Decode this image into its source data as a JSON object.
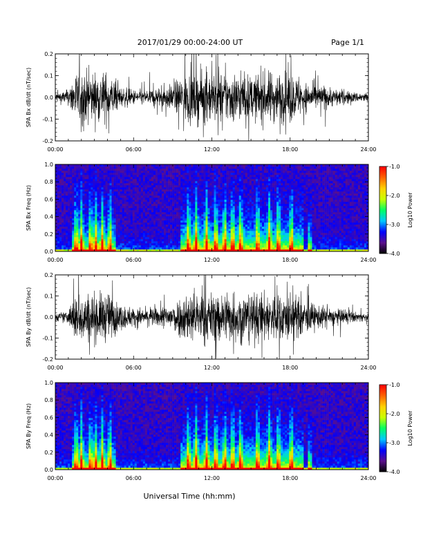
{
  "header": {
    "date_range": "2017/01/29  00:00-24:00 UT",
    "page": "Page 1/1"
  },
  "xlabel": "Universal Time (hh:mm)",
  "x_tick_labels": [
    "00:00",
    "06:00",
    "12:00",
    "18:00",
    "24:00"
  ],
  "chart_data": [
    {
      "type": "line",
      "ylabel": "SPA Bx dB/dt (nT/sec)",
      "xlim": [
        0,
        24
      ],
      "ylim": [
        -0.2,
        0.2
      ],
      "y_ticks": [
        "-0.2",
        "-0.1",
        "0.0",
        "0.1",
        "0.2"
      ],
      "series": [
        {
          "x_hours": [
            0,
            1,
            1.5,
            2,
            2.5,
            3,
            3.5,
            4,
            5,
            6,
            7,
            8,
            9,
            10,
            10.5,
            11,
            12,
            13,
            14,
            15,
            16,
            16.5,
            17,
            17.5,
            18,
            19,
            20,
            21,
            22,
            23,
            24
          ],
          "amplitude": [
            0.04,
            0.06,
            0.2,
            0.2,
            0.2,
            0.2,
            0.2,
            0.2,
            0.08,
            0.06,
            0.06,
            0.08,
            0.1,
            0.2,
            0.2,
            0.2,
            0.2,
            0.2,
            0.2,
            0.17,
            0.2,
            0.2,
            0.2,
            0.2,
            0.2,
            0.12,
            0.1,
            0.08,
            0.06,
            0.04,
            0.04
          ]
        }
      ]
    },
    {
      "type": "heatmap",
      "ylabel": "SPA Bx Freq (Hz)",
      "xlim": [
        0,
        24
      ],
      "ylim": [
        0,
        1.0
      ],
      "y_ticks": [
        "0.0",
        "0.2",
        "0.4",
        "0.6",
        "0.8",
        "1.0"
      ],
      "colorbar": {
        "label": "Log10 Power",
        "range": [
          -4.0,
          -1.0
        ],
        "ticks": [
          "-1.0",
          "-2.0",
          "-3.0",
          "-4.0"
        ],
        "colors": [
          "#000000",
          "#5a0f8c",
          "#0000ff",
          "#00c8ff",
          "#00ff64",
          "#c8ff00",
          "#ffd200",
          "#ff6400",
          "#ff0000"
        ]
      },
      "activity_hours": [
        1.6,
        2.0,
        2.7,
        3.1,
        3.6,
        4.2,
        10.2,
        10.8,
        11.6,
        12.3,
        13.0,
        13.6,
        14.2,
        15.5,
        16.4,
        17.1,
        18.1,
        19.5
      ]
    },
    {
      "type": "line",
      "ylabel": "SPA By dB/dt (nT/sec)",
      "xlim": [
        0,
        24
      ],
      "ylim": [
        -0.2,
        0.2
      ],
      "y_ticks": [
        "-0.2",
        "-0.1",
        "0.0",
        "0.1",
        "0.2"
      ],
      "series": [
        {
          "x_hours": [
            0,
            1,
            1.5,
            2,
            2.5,
            3,
            3.5,
            4,
            5,
            6,
            7,
            8,
            9,
            10,
            10.5,
            11,
            12,
            13,
            14,
            15,
            16,
            16.5,
            17,
            17.5,
            18,
            19,
            20,
            21,
            22,
            23,
            24
          ],
          "amplitude": [
            0.03,
            0.05,
            0.2,
            0.2,
            0.2,
            0.2,
            0.2,
            0.2,
            0.1,
            0.08,
            0.07,
            0.08,
            0.12,
            0.2,
            0.2,
            0.2,
            0.2,
            0.2,
            0.2,
            0.2,
            0.2,
            0.2,
            0.2,
            0.2,
            0.2,
            0.14,
            0.1,
            0.08,
            0.06,
            0.04,
            0.03
          ]
        }
      ]
    },
    {
      "type": "heatmap",
      "ylabel": "SPA By Freq (Hz)",
      "xlim": [
        0,
        24
      ],
      "ylim": [
        0,
        1.0
      ],
      "y_ticks": [
        "0.0",
        "0.2",
        "0.4",
        "0.6",
        "0.8",
        "1.0"
      ],
      "colorbar": {
        "label": "Log10 Power",
        "range": [
          -4.0,
          -1.0
        ],
        "ticks": [
          "-1.0",
          "-2.0",
          "-3.0",
          "-4.0"
        ],
        "colors": [
          "#000000",
          "#5a0f8c",
          "#0000ff",
          "#00c8ff",
          "#00ff64",
          "#c8ff00",
          "#ffd200",
          "#ff6400",
          "#ff0000"
        ]
      },
      "activity_hours": [
        1.6,
        2.0,
        2.7,
        3.1,
        3.6,
        4.2,
        10.2,
        10.8,
        11.6,
        12.3,
        13.0,
        13.6,
        14.2,
        15.5,
        16.4,
        17.1,
        18.1,
        19.5
      ]
    }
  ]
}
